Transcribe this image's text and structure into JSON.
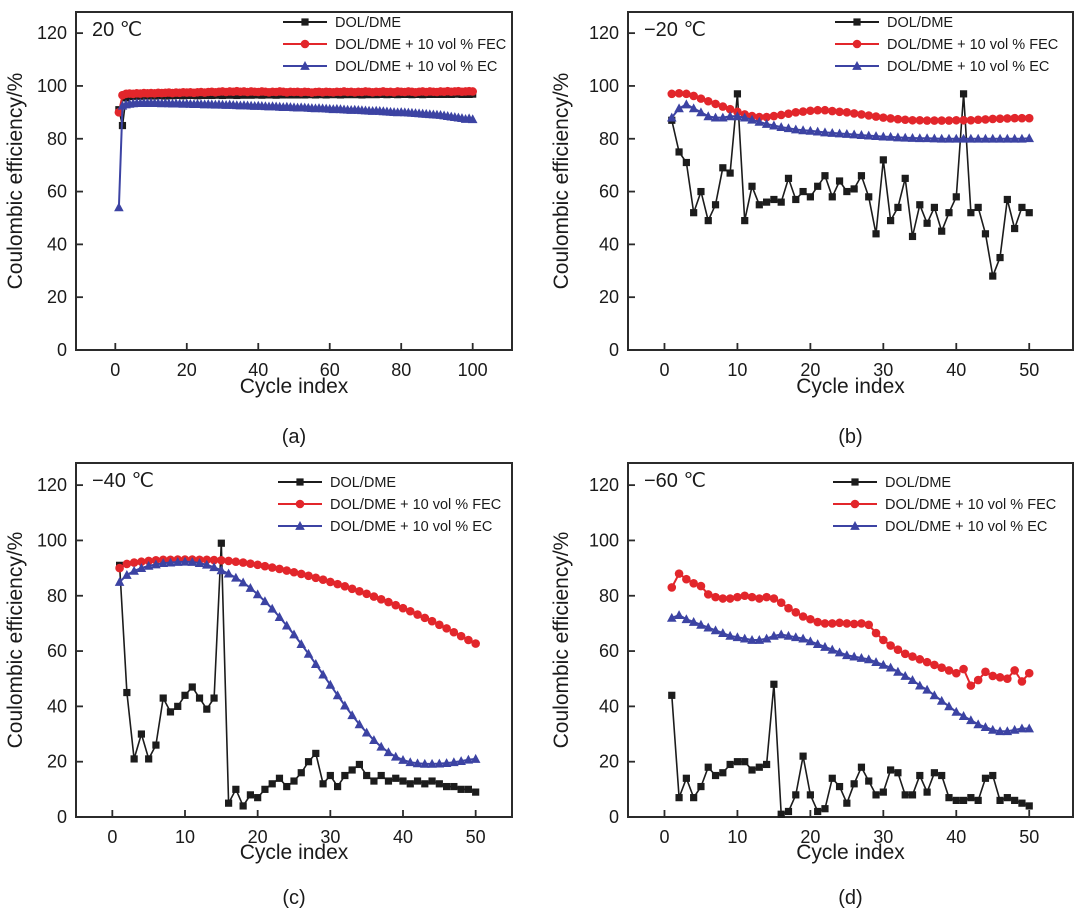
{
  "figure": {
    "ylabel": "Coulombic efficiency/%",
    "xlabel": "Cycle index",
    "colors": {
      "dol_dme": "#1c1c1c",
      "fec": "#e2262b",
      "ec": "#3c43a3"
    }
  },
  "chart_data": [
    {
      "type": "line",
      "caption": "(a)",
      "temperature_label": "20 ℃",
      "xlabel": "Cycle index",
      "ylabel": "Coulombic efficiency/%",
      "xlim": [
        -11,
        111
      ],
      "ylim": [
        0,
        128
      ],
      "xticks": [
        0,
        20,
        40,
        60,
        80,
        100
      ],
      "yticks": [
        0,
        20,
        40,
        60,
        80,
        100,
        120
      ],
      "x_start": 1,
      "legend_position": "top-right-inside",
      "grid": false,
      "series": [
        {
          "name": "DOL/DME",
          "marker": "square",
          "color": "#1c1c1c",
          "values": [
            91,
            85,
            95.5,
            96,
            96.1,
            96.2,
            96.1,
            96.3,
            96.2,
            96.3,
            96.2,
            96.3,
            96.4,
            96.2,
            96.4,
            96.3,
            96.4,
            96.5,
            96.3,
            96.5,
            96.4,
            96.5,
            96.3,
            96.5,
            96.4,
            96.6,
            96.4,
            96.5,
            96.6,
            96.4,
            96.6,
            96.5,
            96.6,
            96.4,
            96.6,
            96.5,
            96.7,
            96.5,
            96.6,
            96.7,
            96.5,
            96.7,
            96.6,
            96.7,
            96.5,
            96.7,
            96.6,
            96.8,
            96.6,
            96.7,
            96.6,
            96.8,
            96.6,
            96.7,
            96.8,
            96.6,
            96.8,
            96.7,
            96.6,
            96.8,
            96.7,
            96.8,
            96.6,
            96.8,
            96.7,
            96.9,
            96.7,
            96.8,
            96.6,
            96.8,
            96.7,
            96.9,
            96.7,
            96.8,
            96.9,
            96.7,
            96.8,
            96.9,
            96.7,
            96.9,
            96.8,
            96.9,
            96.7,
            96.9,
            96.8,
            96.7,
            96.9,
            96.8,
            96.9,
            96.8,
            96.9,
            96.8,
            97,
            96.8,
            96.9,
            97,
            96.8,
            96.9,
            96.8,
            96.9
          ]
        },
        {
          "name": "DOL/DME + 10 vol % FEC",
          "marker": "circle",
          "color": "#e2262b",
          "values": [
            90,
            96.5,
            97,
            97.1,
            97,
            97.2,
            97.1,
            97.3,
            97.2,
            97.3,
            97.2,
            97.4,
            97.3,
            97.4,
            97.5,
            97.3,
            97.5,
            97.4,
            97.6,
            97.5,
            97.6,
            97.4,
            97.6,
            97.7,
            97.5,
            97.7,
            97.8,
            97.6,
            97.8,
            97.9,
            97.7,
            97.9,
            97.8,
            98,
            97.8,
            97.9,
            97.7,
            97.9,
            97.8,
            97.7,
            97.9,
            97.8,
            97.6,
            97.8,
            97.7,
            97.9,
            97.8,
            97.6,
            97.8,
            97.7,
            97.8,
            97.6,
            97.8,
            97.7,
            97.5,
            97.7,
            97.8,
            97.6,
            97.8,
            97.7,
            97.6,
            97.8,
            97.7,
            97.9,
            97.7,
            97.8,
            97.6,
            97.8,
            97.7,
            97.9,
            97.8,
            97.6,
            97.8,
            97.7,
            97.9,
            97.7,
            97.8,
            97.6,
            97.9,
            97.8,
            97.7,
            97.9,
            97.8,
            97.6,
            97.8,
            97.9,
            97.7,
            97.9,
            97.8,
            97.7,
            97.9,
            97.8,
            98,
            97.8,
            97.9,
            98,
            97.8,
            97.9,
            98,
            97.9
          ]
        },
        {
          "name": "DOL/DME + 10 vol % EC",
          "marker": "triangle-up",
          "color": "#3c43a3",
          "values": [
            54,
            92.5,
            93,
            93.2,
            93.4,
            93.5,
            93.5,
            93.6,
            93.5,
            93.6,
            93.5,
            93.5,
            93.4,
            93.5,
            93.4,
            93.3,
            93.4,
            93.3,
            93.2,
            93.3,
            93.2,
            93.1,
            93.2,
            93.1,
            93,
            93.1,
            93,
            92.9,
            93,
            92.9,
            92.8,
            92.9,
            92.8,
            92.7,
            92.6,
            92.7,
            92.6,
            92.5,
            92.4,
            92.5,
            92.4,
            92.3,
            92.2,
            92.3,
            92.2,
            92.1,
            92,
            92.1,
            92,
            91.9,
            91.8,
            91.9,
            91.8,
            91.7,
            91.6,
            91.5,
            91.6,
            91.5,
            91.4,
            91.3,
            91.2,
            91.3,
            91.2,
            91.1,
            91,
            90.9,
            91,
            90.9,
            90.8,
            90.7,
            90.6,
            90.5,
            90.6,
            90.5,
            90.4,
            90.3,
            90.2,
            90.1,
            90,
            90.1,
            90,
            89.9,
            89.8,
            89.7,
            89.6,
            89.5,
            89.4,
            89.3,
            89.2,
            89.1,
            89,
            88.8,
            88.6,
            88.4,
            88.2,
            88,
            87.8,
            87.5,
            87.7,
            87.4
          ]
        }
      ]
    },
    {
      "type": "line",
      "caption": "(b)",
      "temperature_label": "−20 ℃",
      "xlabel": "Cycle index",
      "ylabel": "Coulombic efficiency/%",
      "xlim": [
        -5,
        56
      ],
      "ylim": [
        0,
        128
      ],
      "xticks": [
        0,
        10,
        20,
        30,
        40,
        50
      ],
      "yticks": [
        0,
        20,
        40,
        60,
        80,
        100,
        120
      ],
      "x_start": 1,
      "legend_position": "top-right-inside",
      "grid": false,
      "series": [
        {
          "name": "DOL/DME",
          "marker": "square",
          "color": "#1c1c1c",
          "values": [
            87,
            75,
            71,
            52,
            60,
            49,
            55,
            69,
            67,
            97,
            49,
            62,
            55,
            56,
            57,
            56,
            65,
            57,
            60,
            58,
            62,
            66,
            58,
            64,
            60,
            61,
            66,
            58,
            44,
            72,
            49,
            54,
            65,
            43,
            55,
            48,
            54,
            45,
            52,
            58,
            97,
            52,
            54,
            44,
            28,
            35,
            57,
            46,
            54,
            52
          ]
        },
        {
          "name": "DOL/DME + 10 vol % FEC",
          "marker": "circle",
          "color": "#e2262b",
          "values": [
            97,
            97.2,
            97,
            96.2,
            95.2,
            94.2,
            93.2,
            92.2,
            91.2,
            90.2,
            89.2,
            88.6,
            88.2,
            88.2,
            88.6,
            89,
            89.5,
            90,
            90.3,
            90.6,
            90.8,
            90.8,
            90.5,
            90.2,
            90,
            89.6,
            89.2,
            88.8,
            88.4,
            88,
            87.7,
            87.4,
            87.2,
            87,
            87,
            86.9,
            86.9,
            86.9,
            86.9,
            87,
            87,
            87,
            87.2,
            87.3,
            87.5,
            87.6,
            87.7,
            87.8,
            87.8,
            87.8
          ]
        },
        {
          "name": "DOL/DME + 10 vol % EC",
          "marker": "triangle-up",
          "color": "#3c43a3",
          "values": [
            88,
            91.5,
            93,
            91.5,
            90,
            88.5,
            88,
            88,
            88.5,
            88.5,
            88,
            87.2,
            86.4,
            85.6,
            85,
            84.4,
            84,
            83.5,
            83.2,
            83,
            82.7,
            82.4,
            82.2,
            82,
            81.8,
            81.6,
            81.4,
            81.2,
            81,
            80.8,
            80.7,
            80.5,
            80.4,
            80.3,
            80.2,
            80.2,
            80.1,
            80,
            80,
            80,
            80,
            80,
            80,
            80,
            80,
            80,
            80,
            80,
            80,
            80.2
          ]
        }
      ]
    },
    {
      "type": "line",
      "caption": "(c)",
      "temperature_label": "−40 ℃",
      "xlabel": "Cycle index",
      "ylabel": "Coulombic efficiency/%",
      "xlim": [
        -5,
        55
      ],
      "ylim": [
        0,
        128
      ],
      "xticks": [
        0,
        10,
        20,
        30,
        40,
        50
      ],
      "yticks": [
        0,
        20,
        40,
        60,
        80,
        100,
        120
      ],
      "x_start": 1,
      "legend_position": "top-right-inside",
      "grid": false,
      "series": [
        {
          "name": "DOL/DME",
          "marker": "square",
          "color": "#1c1c1c",
          "values": [
            91,
            45,
            21,
            30,
            21,
            26,
            43,
            38,
            40,
            44,
            47,
            43,
            39,
            43,
            99,
            5,
            10,
            4,
            8,
            7,
            10,
            12,
            14,
            11,
            13,
            16,
            20,
            23,
            12,
            15,
            11,
            15,
            17,
            19,
            15,
            13,
            15,
            13,
            14,
            13,
            12,
            13,
            12,
            13,
            12,
            11,
            11,
            10,
            10,
            9
          ]
        },
        {
          "name": "DOL/DME + 10 vol % FEC",
          "marker": "circle",
          "color": "#e2262b",
          "values": [
            90,
            91.5,
            92,
            92.3,
            92.6,
            92.8,
            93,
            93,
            93.1,
            93.1,
            93.1,
            93,
            93,
            92.9,
            92.8,
            92.6,
            92.3,
            92,
            91.6,
            91.2,
            90.7,
            90.2,
            89.7,
            89.1,
            88.5,
            87.9,
            87.2,
            86.5,
            85.8,
            85,
            84.2,
            83.4,
            82.5,
            81.6,
            80.7,
            79.7,
            78.7,
            77.7,
            76.6,
            75.5,
            74.4,
            73.2,
            72,
            70.8,
            69.5,
            68.2,
            66.8,
            65.4,
            64,
            62.7
          ]
        },
        {
          "name": "DOL/DME + 10 vol % EC",
          "marker": "triangle-up",
          "color": "#3c43a3",
          "values": [
            85,
            87.5,
            89,
            90,
            90.8,
            91.3,
            91.8,
            92,
            92.2,
            92.3,
            92.2,
            91.8,
            91.2,
            90.3,
            89.2,
            88,
            86.5,
            84.8,
            82.8,
            80.5,
            78,
            75.3,
            72.3,
            69.2,
            66,
            62.5,
            59,
            55.3,
            51.5,
            47.8,
            44,
            40.3,
            36.8,
            33.5,
            30.5,
            27.8,
            25.4,
            23.4,
            21.8,
            20.6,
            19.8,
            19.4,
            19.2,
            19.2,
            19.3,
            19.5,
            19.8,
            20.2,
            20.7,
            21
          ]
        }
      ]
    },
    {
      "type": "line",
      "caption": "(d)",
      "temperature_label": "−60 ℃",
      "xlabel": "Cycle index",
      "ylabel": "Coulombic efficiency/%",
      "xlim": [
        -5,
        56
      ],
      "ylim": [
        0,
        128
      ],
      "xticks": [
        0,
        10,
        20,
        30,
        40,
        50
      ],
      "yticks": [
        0,
        20,
        40,
        60,
        80,
        100,
        120
      ],
      "x_start": 1,
      "legend_position": "top-right-inside",
      "grid": false,
      "series": [
        {
          "name": "DOL/DME",
          "marker": "square",
          "color": "#1c1c1c",
          "values": [
            44,
            7,
            14,
            7,
            11,
            18,
            15,
            16,
            19,
            20,
            20,
            17,
            18,
            19,
            48,
            1,
            2,
            8,
            22,
            8,
            2,
            3,
            14,
            11,
            5,
            12,
            18,
            13,
            8,
            9,
            17,
            16,
            8,
            8,
            15,
            9,
            16,
            15,
            7,
            6,
            6,
            7,
            6,
            14,
            15,
            6,
            7,
            6,
            5,
            4
          ]
        },
        {
          "name": "DOL/DME + 10 vol % FEC",
          "marker": "circle",
          "color": "#e2262b",
          "values": [
            83,
            88,
            86,
            84.5,
            83.5,
            80.5,
            79.5,
            79,
            79,
            79.5,
            80,
            79.5,
            79,
            79.5,
            79,
            77.5,
            75.5,
            74,
            72.5,
            71.5,
            70.5,
            70,
            70,
            70.2,
            70,
            69.8,
            70,
            69.5,
            66.5,
            64,
            62,
            60.5,
            59,
            58,
            57,
            56,
            55,
            54,
            53,
            52,
            53.5,
            47.5,
            49.5,
            52.5,
            51,
            50.5,
            50,
            53,
            49,
            52
          ]
        },
        {
          "name": "DOL/DME + 10 vol % EC",
          "marker": "triangle-up",
          "color": "#3c43a3",
          "values": [
            72,
            73,
            71.5,
            70.5,
            69.5,
            68.5,
            67.5,
            66.5,
            65.5,
            65,
            64.5,
            64,
            64,
            64.5,
            65.5,
            66,
            65.5,
            65,
            64.5,
            63.5,
            62.5,
            61.5,
            60.5,
            59.5,
            58.5,
            58,
            57.5,
            57,
            56,
            55,
            54,
            52.5,
            51,
            49.5,
            47.5,
            46,
            44,
            42,
            40,
            38,
            36.5,
            35,
            33.5,
            32.5,
            31.5,
            31,
            31,
            31.5,
            32,
            32
          ]
        }
      ]
    }
  ]
}
